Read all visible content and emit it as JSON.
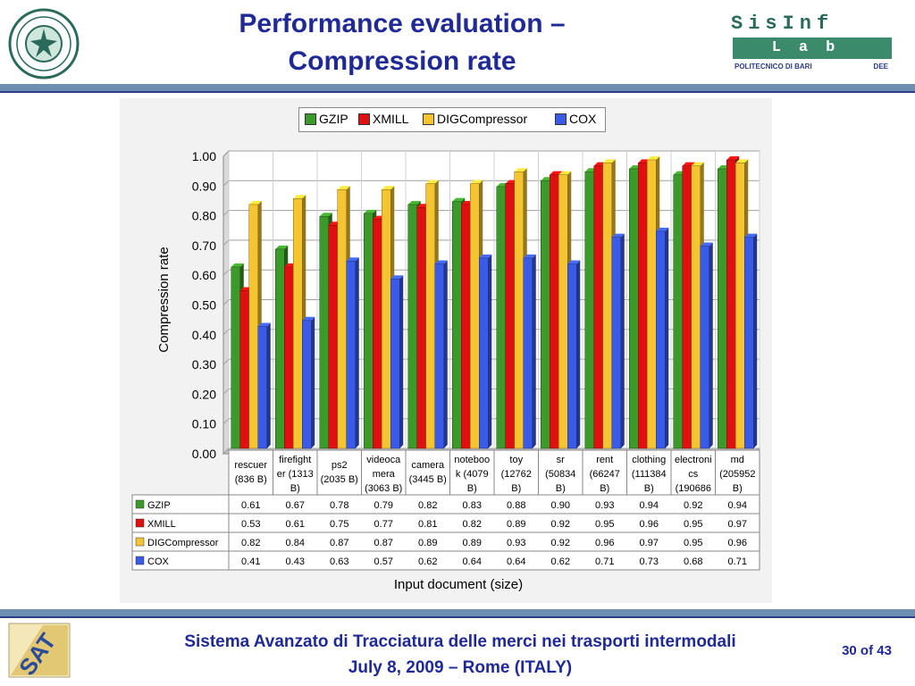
{
  "slide": {
    "title_line1": "Performance evaluation –",
    "title_line2": "Compression rate",
    "footer_line1": "Sistema Avanzato di Tracciatura delle merci nei trasporti intermodali",
    "footer_line2": "July 8, 2009 – Rome (ITALY)",
    "page_number": "30 of 43",
    "logo_right_line1": "SisInf",
    "logo_right_line2": "Lab",
    "logo_right_line3": "POLITECNICO DI BARI",
    "logo_right_line4": "DEE"
  },
  "chart_data": {
    "type": "bar",
    "ylabel": "Compression rate",
    "xlabel": "Input document (size)",
    "ylim": [
      0,
      1.0
    ],
    "yticks": [
      "0.00",
      "0.10",
      "0.20",
      "0.30",
      "0.40",
      "0.50",
      "0.60",
      "0.70",
      "0.80",
      "0.90",
      "1.00"
    ],
    "grid": true,
    "legend_position": "top",
    "categories": [
      [
        "rescuer",
        "(836 B)"
      ],
      [
        "firefight",
        "er (1313",
        "B)"
      ],
      [
        "ps2",
        "(2035 B)"
      ],
      [
        "videoca",
        "mera",
        "(3063 B)"
      ],
      [
        "camera",
        "(3445 B)"
      ],
      [
        "noteboo",
        "k (4079",
        "B)"
      ],
      [
        "toy",
        "(12762",
        "B)"
      ],
      [
        "sr",
        "(50834",
        "B)"
      ],
      [
        "rent",
        "(66247",
        "B)"
      ],
      [
        "clothing",
        "(111384",
        "B)"
      ],
      [
        "electroni",
        "cs",
        "(190686"
      ],
      [
        "md",
        "(205952",
        "B)"
      ]
    ],
    "series": [
      {
        "name": "GZIP",
        "color": "#3c9a2a",
        "values": [
          0.61,
          0.67,
          0.78,
          0.79,
          0.82,
          0.83,
          0.88,
          0.9,
          0.93,
          0.94,
          0.92,
          0.94
        ],
        "labels": [
          "0.61",
          "0.67",
          "0.78",
          "0.79",
          "0.82",
          "0.83",
          "0.88",
          "0.90",
          "0.93",
          "0.94",
          "0.92",
          "0.94"
        ]
      },
      {
        "name": "XMILL",
        "color": "#e01010",
        "values": [
          0.53,
          0.61,
          0.75,
          0.77,
          0.81,
          0.82,
          0.89,
          0.92,
          0.95,
          0.96,
          0.95,
          0.97
        ],
        "labels": [
          "0.53",
          "0.61",
          "0.75",
          "0.77",
          "0.81",
          "0.82",
          "0.89",
          "0.92",
          "0.95",
          "0.96",
          "0.95",
          "0.97"
        ]
      },
      {
        "name": "DIGCompressor",
        "color": "#f5c431",
        "values": [
          0.82,
          0.84,
          0.87,
          0.87,
          0.89,
          0.89,
          0.93,
          0.92,
          0.96,
          0.97,
          0.95,
          0.96
        ],
        "labels": [
          "0.82",
          "0.84",
          "0.87",
          "0.87",
          "0.89",
          "0.89",
          "0.93",
          "0.92",
          "0.96",
          "0.97",
          "0.95",
          "0.96"
        ]
      },
      {
        "name": "COX",
        "color": "#3a5ae8",
        "values": [
          0.41,
          0.43,
          0.63,
          0.57,
          0.62,
          0.64,
          0.64,
          0.62,
          0.71,
          0.73,
          0.68,
          0.71
        ],
        "labels": [
          "0.41",
          "0.43",
          "0.63",
          "0.57",
          "0.62",
          "0.64",
          "0.64",
          "0.62",
          "0.71",
          "0.73",
          "0.68",
          "0.71"
        ]
      }
    ]
  }
}
